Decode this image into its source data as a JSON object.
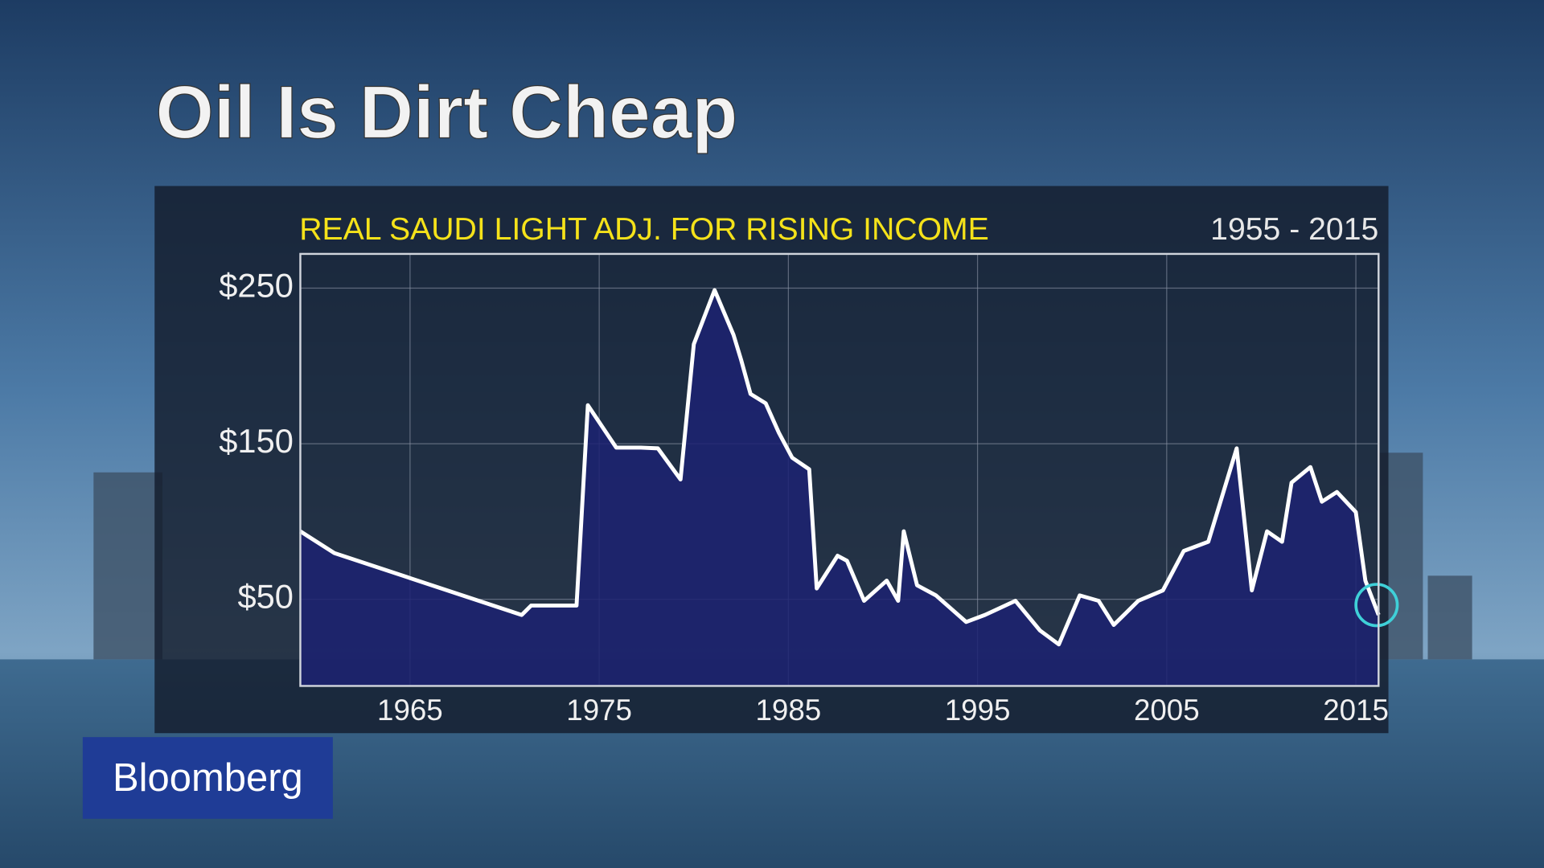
{
  "header": {
    "title": "Oil Is Dirt Cheap"
  },
  "brand": "Bloomberg",
  "chart_data": {
    "type": "area",
    "title": "REAL SAUDI LIGHT ADJ. FOR RISING INCOME",
    "subtitle": "1955 - 2015",
    "x": [
      1959.2,
      1961.0,
      1970.9,
      1971.4,
      1973.8,
      1974.4,
      1975.9,
      1977.2,
      1978.1,
      1979.3,
      1980.0,
      1981.1,
      1982.1,
      1982.5,
      1983.0,
      1983.8,
      1984.5,
      1985.2,
      1986.1,
      1986.5,
      1987.6,
      1988.1,
      1989.0,
      1990.2,
      1990.8,
      1991.1,
      1991.8,
      1992.8,
      1994.4,
      1995.4,
      1997.0,
      1998.3,
      1999.3,
      2000.4,
      2001.4,
      2002.2,
      2003.5,
      2004.8,
      2005.9,
      2007.2,
      2008.7,
      2009.5,
      2010.3,
      2011.1,
      2011.6,
      2012.6,
      2013.2,
      2014.0,
      2015.0,
      2015.5,
      2016.2
    ],
    "values": [
      93.7,
      79.7,
      39.9,
      46,
      46,
      174.7,
      147.5,
      147.5,
      147,
      127,
      214,
      248.7,
      220,
      204,
      182,
      176,
      157,
      141,
      133.5,
      57,
      78,
      74.7,
      49,
      62,
      49,
      93.7,
      59,
      52.5,
      35.4,
      40,
      49,
      30,
      21,
      52.5,
      49,
      33.5,
      49,
      55.7,
      81,
      87,
      147,
      55.7,
      93.7,
      87,
      125,
      135,
      112.7,
      119,
      106,
      62,
      40
    ],
    "line_color": "#ffffff",
    "fill_color": "#1c2272",
    "xlim": [
      1959.2,
      2016.2
    ],
    "xticks": [
      1965,
      1975,
      1985,
      1995,
      2005,
      2015
    ],
    "ylim": [
      -5.7,
      272
    ],
    "yticks": [
      {
        "value": 50,
        "label": "$50"
      },
      {
        "value": 150,
        "label": "$150"
      },
      {
        "value": 250,
        "label": "$250"
      }
    ],
    "grid": true
  }
}
